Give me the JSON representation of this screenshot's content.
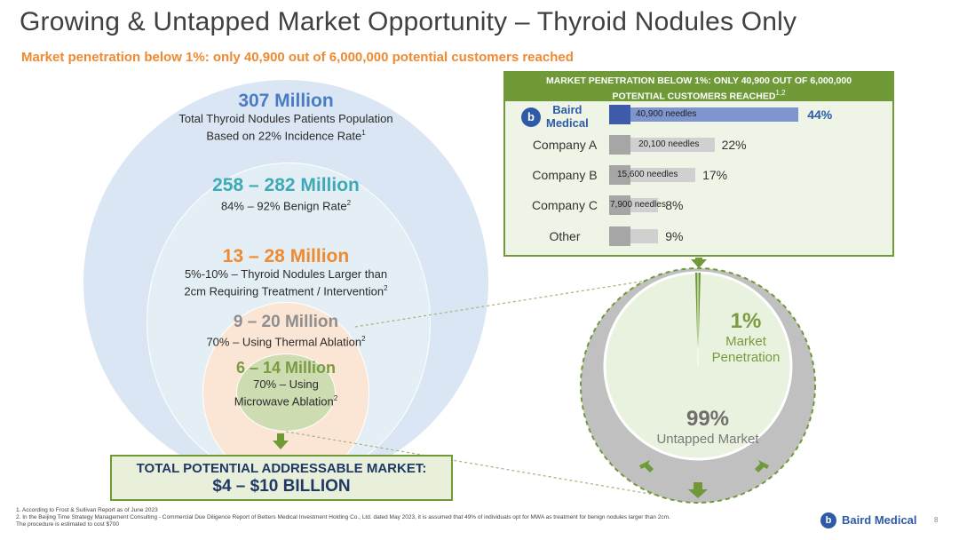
{
  "title": "Growing  & Untapped Market Opportunity – Thyroid Nodules Only",
  "subtitle": "Market penetration below 1%: only 40,900 out of 6,000,000 potential customers reached",
  "funnel": [
    {
      "value": "307 Million",
      "line1": "Total Thyroid Nodules Patients Population",
      "line2": "Based on 22% Incidence Rate",
      "sup": "1"
    },
    {
      "value": "258 – 282 Million",
      "line1": "84% – 92% Benign Rate",
      "sup": "2"
    },
    {
      "value": "13 – 28 Million",
      "line1": "5%-10% – Thyroid Nodules Larger than",
      "line2": "2cm Requiring Treatment / Intervention",
      "sup": "2"
    },
    {
      "value": "9 – 20 Million",
      "line1": "70% – Using Thermal Ablation",
      "sup": "2"
    },
    {
      "value": "6 – 14 Million",
      "line1": "70% – Using",
      "line2": "Microwave Ablation",
      "sup": "2"
    }
  ],
  "tam": {
    "line1": "TOTAL POTENTIAL ADDRESSABLE MARKET:",
    "line2": "$4 – $10 BILLION"
  },
  "panel": {
    "header_line1": "MARKET PENETRATION BELOW 1%: ONLY 40,900 OUT OF 6,000,000",
    "header_line2": "POTENTIAL CUSTOMERS REACHED",
    "header_sup": "1,2",
    "logo_line1": "Baird",
    "logo_line2": "Medical",
    "logo_glyph": "b",
    "rows": [
      {
        "label": "Company A",
        "bar_text": "20,100 needles",
        "pct": "22%",
        "share": 22
      },
      {
        "label": "Company B",
        "bar_text": "15,600 needles",
        "pct": "17%",
        "share": 17
      },
      {
        "label": "Company C",
        "bar_text": "7,900 needles",
        "pct": "8%",
        "share": 8
      },
      {
        "label": "Other",
        "bar_text": "",
        "pct": "9%",
        "share": 9
      }
    ],
    "baird": {
      "bar_text": "40,900 needles",
      "pct": "44%",
      "share": 44
    }
  },
  "pie": {
    "penetration_value": "1%",
    "penetration_label1": "Market",
    "penetration_label2": "Penetration",
    "untapped_value": "99%",
    "untapped_label": "Untapped Market"
  },
  "footnotes": [
    "1.  According to Frost & Sullivan Report as of June 2023",
    "2. In the Beijing Time Strategy Management Consulting - Commercial Due Diligence Report of Betters Medical Investment Holding Co., Ltd. dated May 2023, it is assumed that 49% of individuals opt for MWA as treatment for benign nodules larger than 2cm.",
    "The procedure is estimated to cost $700"
  ],
  "footer": {
    "brand": "Baird Medical",
    "glyph": "b",
    "page": "8"
  },
  "colors": {
    "green": "#6f9a37",
    "orange": "#ef8a30",
    "blue": "#2e5aa8",
    "navy": "#1f3864"
  }
}
